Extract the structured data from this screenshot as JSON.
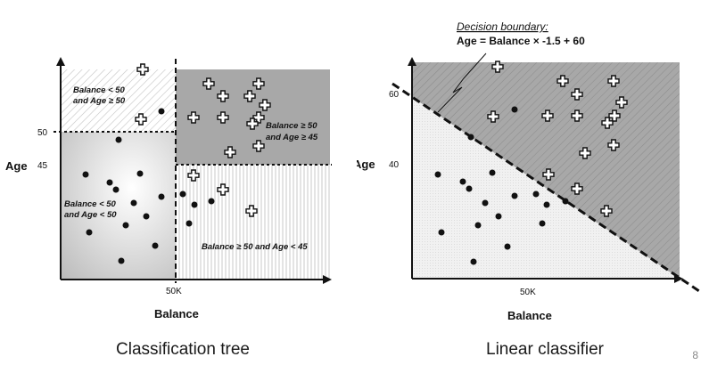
{
  "tree": {
    "x_label": "Balance",
    "y_label": "Age",
    "x_tick": "50K",
    "y_ticks": [
      "50",
      "45"
    ],
    "regions": {
      "top_left": [
        "Balance < 50",
        "and Age ≥ 50"
      ],
      "top_right": [
        "Balance ≥ 50",
        "and Age ≥ 45"
      ],
      "bottom_left": [
        "Balance < 50",
        "and Age < 50"
      ],
      "bottom_right": "Balance ≥ 50 and Age < 45"
    },
    "caption": "Classification tree"
  },
  "linear": {
    "x_label": "Balance",
    "y_label": "Age",
    "x_tick": "50K",
    "y_ticks": [
      "60",
      "40"
    ],
    "boundary_title": "Decision boundary:",
    "boundary_equation": "Age = Balance × -1.5 +  60",
    "caption": "Linear classifier"
  },
  "slide_number": "8",
  "colors": {
    "shaded_region": "#a8a8a8",
    "light_region": "#e8e8e8",
    "ink": "#111111"
  },
  "icons": {
    "positive_marker": "white-plus-cross",
    "negative_marker": "black-dot"
  }
}
